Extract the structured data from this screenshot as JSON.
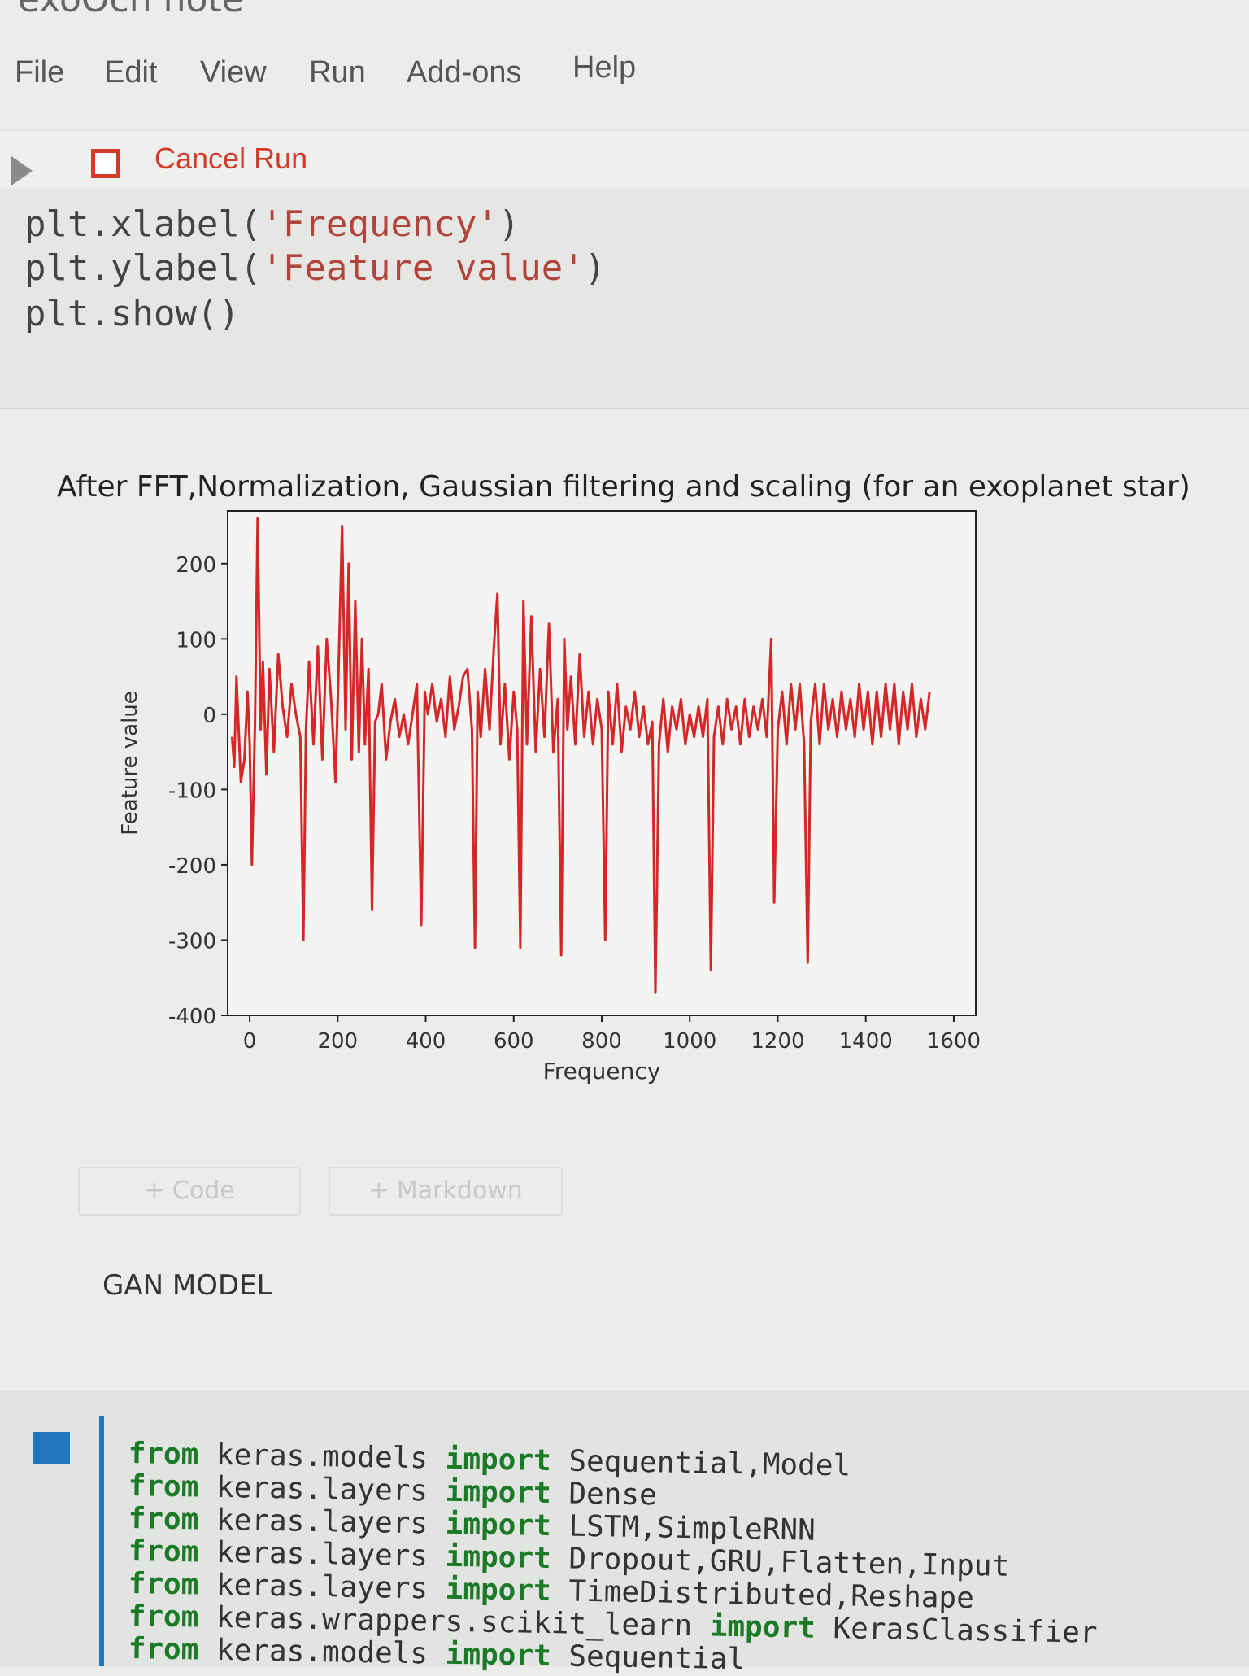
{
  "notebook": {
    "title_fragment": "exoOcn note"
  },
  "menu": [
    {
      "label": "File"
    },
    {
      "label": "Edit"
    },
    {
      "label": "View"
    },
    {
      "label": "Run"
    },
    {
      "label": "Add-ons"
    },
    {
      "label": "Help"
    }
  ],
  "toolbar": {
    "cancel_run_label": "Cancel Run"
  },
  "code_cell": {
    "lines": [
      {
        "func": "plt.xlabel(",
        "arg": "'Frequency'",
        "close": ")"
      },
      {
        "func": "plt.ylabel(",
        "arg": "'Feature value'",
        "close": ")"
      },
      {
        "func": "plt.show()",
        "arg": "",
        "close": ""
      }
    ]
  },
  "chart_data": {
    "type": "line",
    "title": "After FFT,Normalization, Gaussian filtering and scaling (for an exoplanet star)",
    "xlabel": "Frequency",
    "ylabel": "Feature value",
    "xlim": [
      -50,
      1650
    ],
    "ylim": [
      -400,
      270
    ],
    "xticks": [
      0,
      200,
      400,
      600,
      800,
      1000,
      1200,
      1400,
      1600
    ],
    "yticks": [
      200,
      100,
      0,
      -100,
      -200,
      -300,
      -400
    ],
    "color": "#d62728",
    "grid": false,
    "series": [
      {
        "values": [
          [
            -40,
            -30
          ],
          [
            -35,
            -70
          ],
          [
            -30,
            50
          ],
          [
            -25,
            -20
          ],
          [
            -20,
            -90
          ],
          [
            -12,
            -60
          ],
          [
            -5,
            30
          ],
          [
            0,
            -40
          ],
          [
            5,
            -200
          ],
          [
            12,
            -10
          ],
          [
            18,
            260
          ],
          [
            25,
            -20
          ],
          [
            30,
            70
          ],
          [
            38,
            -80
          ],
          [
            45,
            60
          ],
          [
            55,
            -50
          ],
          [
            65,
            80
          ],
          [
            75,
            10
          ],
          [
            85,
            -30
          ],
          [
            95,
            40
          ],
          [
            105,
            0
          ],
          [
            115,
            -30
          ],
          [
            122,
            -300
          ],
          [
            128,
            -20
          ],
          [
            135,
            70
          ],
          [
            145,
            -40
          ],
          [
            155,
            90
          ],
          [
            165,
            -60
          ],
          [
            175,
            100
          ],
          [
            185,
            20
          ],
          [
            195,
            -90
          ],
          [
            202,
            60
          ],
          [
            210,
            250
          ],
          [
            218,
            -20
          ],
          [
            225,
            200
          ],
          [
            232,
            -60
          ],
          [
            240,
            150
          ],
          [
            248,
            -50
          ],
          [
            255,
            100
          ],
          [
            262,
            -40
          ],
          [
            270,
            60
          ],
          [
            278,
            -260
          ],
          [
            285,
            -10
          ],
          [
            292,
            0
          ],
          [
            300,
            40
          ],
          [
            310,
            -60
          ],
          [
            320,
            -10
          ],
          [
            330,
            20
          ],
          [
            340,
            -30
          ],
          [
            350,
            0
          ],
          [
            360,
            -40
          ],
          [
            370,
            0
          ],
          [
            380,
            40
          ],
          [
            390,
            -280
          ],
          [
            398,
            30
          ],
          [
            405,
            0
          ],
          [
            415,
            40
          ],
          [
            425,
            -10
          ],
          [
            435,
            20
          ],
          [
            445,
            -30
          ],
          [
            455,
            50
          ],
          [
            465,
            -20
          ],
          [
            475,
            10
          ],
          [
            485,
            50
          ],
          [
            495,
            60
          ],
          [
            505,
            -20
          ],
          [
            512,
            -310
          ],
          [
            518,
            30
          ],
          [
            525,
            -30
          ],
          [
            535,
            60
          ],
          [
            545,
            -20
          ],
          [
            555,
            90
          ],
          [
            563,
            160
          ],
          [
            570,
            -40
          ],
          [
            580,
            40
          ],
          [
            590,
            -60
          ],
          [
            600,
            30
          ],
          [
            608,
            -20
          ],
          [
            615,
            -310
          ],
          [
            622,
            150
          ],
          [
            630,
            -40
          ],
          [
            640,
            130
          ],
          [
            650,
            -50
          ],
          [
            660,
            60
          ],
          [
            670,
            -30
          ],
          [
            680,
            120
          ],
          [
            690,
            -50
          ],
          [
            700,
            20
          ],
          [
            708,
            -320
          ],
          [
            715,
            100
          ],
          [
            722,
            -20
          ],
          [
            730,
            50
          ],
          [
            740,
            -40
          ],
          [
            750,
            80
          ],
          [
            760,
            -30
          ],
          [
            770,
            30
          ],
          [
            780,
            -40
          ],
          [
            790,
            20
          ],
          [
            800,
            -20
          ],
          [
            808,
            -300
          ],
          [
            815,
            30
          ],
          [
            825,
            -40
          ],
          [
            835,
            40
          ],
          [
            845,
            -50
          ],
          [
            855,
            10
          ],
          [
            865,
            -20
          ],
          [
            875,
            30
          ],
          [
            885,
            -30
          ],
          [
            895,
            10
          ],
          [
            905,
            -40
          ],
          [
            915,
            -10
          ],
          [
            922,
            -370
          ],
          [
            930,
            -40
          ],
          [
            940,
            20
          ],
          [
            950,
            -50
          ],
          [
            960,
            10
          ],
          [
            970,
            -20
          ],
          [
            980,
            20
          ],
          [
            990,
            -40
          ],
          [
            1000,
            0
          ],
          [
            1010,
            -30
          ],
          [
            1020,
            10
          ],
          [
            1030,
            -30
          ],
          [
            1040,
            20
          ],
          [
            1048,
            -340
          ],
          [
            1055,
            -30
          ],
          [
            1065,
            10
          ],
          [
            1075,
            -40
          ],
          [
            1085,
            20
          ],
          [
            1095,
            -20
          ],
          [
            1105,
            10
          ],
          [
            1115,
            -40
          ],
          [
            1125,
            20
          ],
          [
            1135,
            -30
          ],
          [
            1145,
            10
          ],
          [
            1155,
            -20
          ],
          [
            1165,
            20
          ],
          [
            1175,
            -30
          ],
          [
            1185,
            100
          ],
          [
            1192,
            -250
          ],
          [
            1200,
            -20
          ],
          [
            1210,
            30
          ],
          [
            1220,
            -40
          ],
          [
            1230,
            40
          ],
          [
            1240,
            -20
          ],
          [
            1250,
            40
          ],
          [
            1260,
            -40
          ],
          [
            1268,
            -330
          ],
          [
            1275,
            -10
          ],
          [
            1285,
            40
          ],
          [
            1295,
            -40
          ],
          [
            1305,
            40
          ],
          [
            1315,
            -20
          ],
          [
            1325,
            20
          ],
          [
            1335,
            -30
          ],
          [
            1345,
            30
          ],
          [
            1355,
            -20
          ],
          [
            1365,
            20
          ],
          [
            1375,
            -30
          ],
          [
            1385,
            40
          ],
          [
            1395,
            -20
          ],
          [
            1405,
            30
          ],
          [
            1415,
            -40
          ],
          [
            1425,
            30
          ],
          [
            1435,
            -30
          ],
          [
            1445,
            40
          ],
          [
            1455,
            -20
          ],
          [
            1465,
            40
          ],
          [
            1475,
            -40
          ],
          [
            1485,
            30
          ],
          [
            1495,
            -20
          ],
          [
            1505,
            40
          ],
          [
            1515,
            -30
          ],
          [
            1525,
            20
          ],
          [
            1535,
            -20
          ],
          [
            1545,
            30
          ]
        ]
      }
    ]
  },
  "cell_buttons": {
    "code": "+ Code",
    "markdown": "+ Markdown"
  },
  "markdown_cell": {
    "text": "GAN MODEL"
  },
  "import_cell": {
    "lines": [
      {
        "from": "from",
        "module": " keras.models ",
        "import": "import",
        "names": " Sequential,Model"
      },
      {
        "from": "from",
        "module": " keras.layers ",
        "import": "import",
        "names": " Dense"
      },
      {
        "from": "from",
        "module": " keras.layers ",
        "import": "import",
        "names": " LSTM,SimpleRNN"
      },
      {
        "from": "from",
        "module": " keras.layers ",
        "import": "import",
        "names": " Dropout,GRU,Flatten,Input"
      },
      {
        "from": "from",
        "module": " keras.layers ",
        "import": "import",
        "names": " TimeDistributed,Reshape"
      },
      {
        "from": "from",
        "module": " keras.wrappers.scikit_learn ",
        "import": "import",
        "names": " KerasClassifier"
      },
      {
        "from": "from",
        "module": " keras.models ",
        "import": "import",
        "names": " Sequential"
      }
    ]
  }
}
